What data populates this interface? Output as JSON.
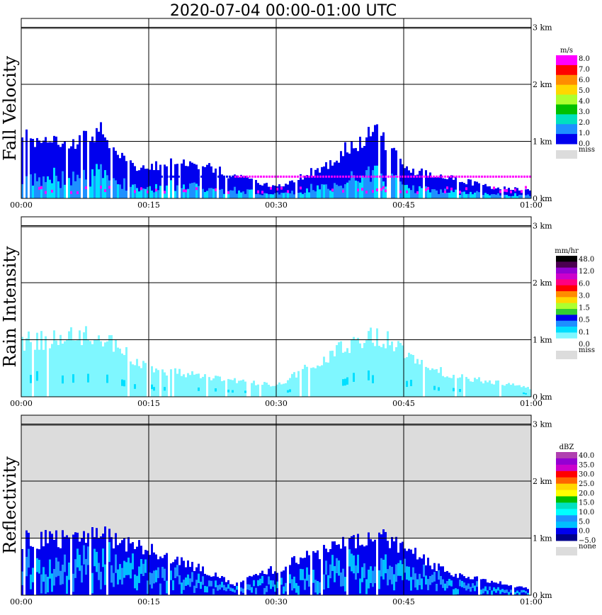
{
  "title": "2020-07-04   00:00-01:00 UTC",
  "x_ticks": [
    "00:00",
    "00:15",
    "00:30",
    "00:45",
    "01:00"
  ],
  "height_ticks": [
    "3 km",
    "2 km",
    "1 km",
    "0 km"
  ],
  "colors": {
    "grid": "#000000",
    "missing": "#dcdcdc",
    "rain": "#7ff7ff",
    "fall_fast": "#0000ee",
    "fall_mid": "#1e90ff",
    "fall_slow": "#00dfff",
    "fall_magenta": "#ff00ff"
  },
  "panels": [
    {
      "ylabel": "Fall Velocity",
      "colorbar": {
        "unit": "m/s",
        "levels": [
          "8.0",
          "7.0",
          "6.0",
          "5.0",
          "4.0",
          "3.0",
          "2.0",
          "1.0",
          "0.0"
        ],
        "colors": [
          "#ff00ff",
          "#ff0000",
          "#ff8c00",
          "#ffd700",
          "#adff2f",
          "#00c000",
          "#00e0c0",
          "#1e90ff",
          "#0000ee"
        ],
        "missing_label": "miss"
      }
    },
    {
      "ylabel": "Rain Intensity",
      "colorbar": {
        "unit": "mm/hr",
        "levels": [
          "48.0",
          "12.0",
          "6.0",
          "3.0",
          "1.5",
          "0.5",
          "0.1",
          "0.0"
        ],
        "colors": [
          "#000000",
          "#4b0050",
          "#9400d3",
          "#cc00cc",
          "#ff0080",
          "#ff0000",
          "#ff8c00",
          "#ffd700",
          "#adff2f",
          "#32cd32",
          "#0000ee",
          "#1e90ff",
          "#00dfff",
          "#7ff7ff",
          "#ffffff"
        ],
        "missing_label": "miss"
      }
    },
    {
      "ylabel": "Reflectivity",
      "colorbar": {
        "unit": "dBZ",
        "levels": [
          "40.0",
          "35.0",
          "30.0",
          "25.0",
          "20.0",
          "15.0",
          "10.0",
          "5.0",
          "0.0",
          "−5.0"
        ],
        "colors": [
          "#b040b0",
          "#9400d3",
          "#cc00cc",
          "#ff0000",
          "#ff6400",
          "#ffd700",
          "#ffff00",
          "#00c000",
          "#00e0c0",
          "#00ffff",
          "#1e90ff",
          "#00bfff",
          "#0000ee",
          "#00008b"
        ],
        "missing_label": "none"
      }
    }
  ],
  "chart_data": [
    {
      "type": "heatmap",
      "title": "2020-07-04   00:00-01:00 UTC",
      "ylabel": "Fall Velocity",
      "x_range": [
        "00:00",
        "01:00"
      ],
      "y_range_km": [
        0,
        3.2
      ],
      "echo_top_km": [
        {
          "t": "00:00",
          "top": 1.1
        },
        {
          "t": "00:05",
          "top": 1.0
        },
        {
          "t": "00:09",
          "top": 1.2
        },
        {
          "t": "00:14",
          "top": 0.5
        },
        {
          "t": "00:19",
          "top": 0.7
        },
        {
          "t": "00:25",
          "top": 0.4
        },
        {
          "t": "00:30",
          "top": 0.2
        },
        {
          "t": "00:36",
          "top": 0.6
        },
        {
          "t": "00:39",
          "top": 1.0
        },
        {
          "t": "00:42",
          "top": 1.2
        },
        {
          "t": "00:45",
          "top": 0.5
        },
        {
          "t": "00:50",
          "top": 0.4
        },
        {
          "t": "00:55",
          "top": 0.2
        },
        {
          "t": "01:00",
          "top": 0.15
        }
      ],
      "ground_clutter_line_km": 0.4
    },
    {
      "type": "heatmap",
      "ylabel": "Rain Intensity",
      "x_range": [
        "00:00",
        "01:00"
      ],
      "y_range_km": [
        0,
        3.2
      ],
      "dominant_class": "0.1",
      "echo_top_km": [
        {
          "t": "00:00",
          "top": 1.0
        },
        {
          "t": "00:09",
          "top": 1.1
        },
        {
          "t": "00:15",
          "top": 0.5
        },
        {
          "t": "00:25",
          "top": 0.3
        },
        {
          "t": "00:30",
          "top": 0.2
        },
        {
          "t": "00:39",
          "top": 1.0
        },
        {
          "t": "00:42",
          "top": 1.1
        },
        {
          "t": "00:50",
          "top": 0.4
        },
        {
          "t": "01:00",
          "top": 0.15
        }
      ]
    },
    {
      "type": "heatmap",
      "ylabel": "Reflectivity",
      "x_range": [
        "00:00",
        "01:00"
      ],
      "y_range_km": [
        0,
        3.2
      ],
      "missing_above_km": 1.0,
      "echo_top_km": [
        {
          "t": "00:00",
          "top": 1.0
        },
        {
          "t": "00:06",
          "top": 1.0
        },
        {
          "t": "00:09",
          "top": 1.1
        },
        {
          "t": "00:19",
          "top": 0.6
        },
        {
          "t": "00:25",
          "top": 0.2
        },
        {
          "t": "00:39",
          "top": 1.0
        },
        {
          "t": "00:42",
          "top": 1.1
        },
        {
          "t": "00:50",
          "top": 0.4
        },
        {
          "t": "01:00",
          "top": 0.1
        }
      ]
    }
  ]
}
